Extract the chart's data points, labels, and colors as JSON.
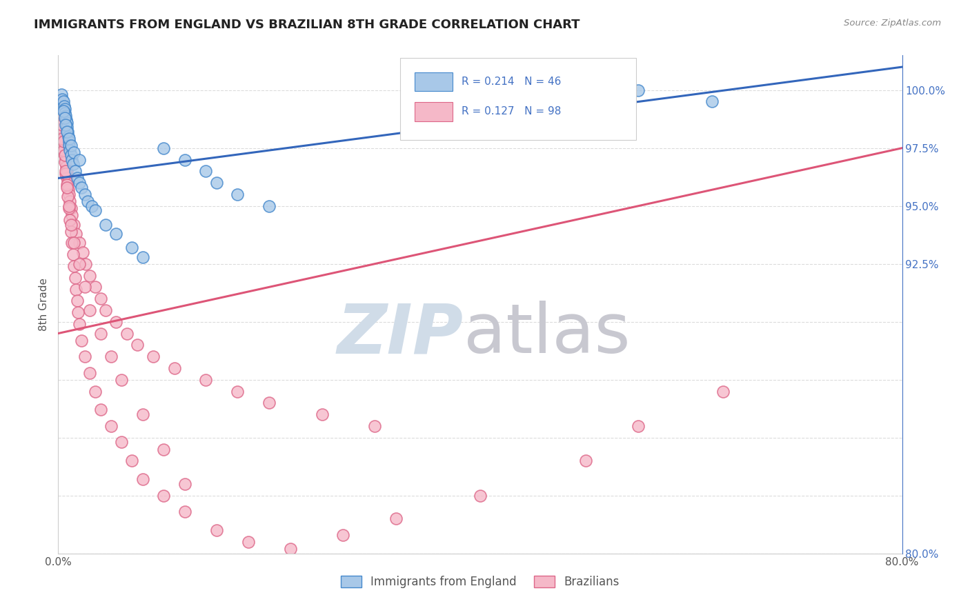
{
  "title": "IMMIGRANTS FROM ENGLAND VS BRAZILIAN 8TH GRADE CORRELATION CHART",
  "source_text": "Source: ZipAtlas.com",
  "ylabel": "8th Grade",
  "xlim": [
    0.0,
    80.0
  ],
  "ylim": [
    80.0,
    101.5
  ],
  "xtick_positions": [
    0.0,
    20.0,
    40.0,
    60.0,
    80.0
  ],
  "xticklabels": [
    "0.0%",
    "",
    "",
    "",
    "80.0%"
  ],
  "ytick_positions": [
    80.0,
    82.5,
    85.0,
    87.5,
    90.0,
    92.5,
    95.0,
    97.5,
    100.0
  ],
  "yticklabels_right": [
    "80.0%",
    "",
    "",
    "",
    "",
    "92.5%",
    "95.0%",
    "97.5%",
    "100.0%"
  ],
  "r_england": 0.214,
  "n_england": 46,
  "r_brazil": 0.127,
  "n_brazil": 98,
  "blue_line": [
    [
      0.0,
      96.2
    ],
    [
      80.0,
      101.0
    ]
  ],
  "pink_line": [
    [
      0.0,
      89.5
    ],
    [
      80.0,
      97.5
    ]
  ],
  "color_eng_face": "#a8c8e8",
  "color_eng_edge": "#4488cc",
  "color_bra_face": "#f5b8c8",
  "color_bra_edge": "#dd6688",
  "color_blue_line": "#3366bb",
  "color_pink_line": "#dd5577",
  "right_axis_color": "#4472c4",
  "watermark_zip_color": "#d0dce8",
  "watermark_atlas_color": "#c8c8d0",
  "title_color": "#222222",
  "source_color": "#888888",
  "ylabel_color": "#555555",
  "xtick_color": "#555555",
  "grid_color": "#d8d8d8",
  "background": "#ffffff",
  "eng_x": [
    0.3,
    0.4,
    0.5,
    0.55,
    0.6,
    0.65,
    0.7,
    0.75,
    0.8,
    0.85,
    0.9,
    0.95,
    1.0,
    1.05,
    1.1,
    1.2,
    1.3,
    1.4,
    1.6,
    1.8,
    2.0,
    2.2,
    2.5,
    2.8,
    3.2,
    3.5,
    4.5,
    5.5,
    7.0,
    8.0,
    10.0,
    12.0,
    14.0,
    15.0,
    17.0,
    20.0,
    55.0,
    62.0,
    0.5,
    0.6,
    0.7,
    0.8,
    1.0,
    1.2,
    1.5,
    2.0
  ],
  "eng_y": [
    99.8,
    99.6,
    99.5,
    99.3,
    99.2,
    99.0,
    98.9,
    98.7,
    98.6,
    98.4,
    98.2,
    98.0,
    97.8,
    97.6,
    97.4,
    97.2,
    97.0,
    96.8,
    96.5,
    96.2,
    96.0,
    95.8,
    95.5,
    95.2,
    95.0,
    94.8,
    94.2,
    93.8,
    93.2,
    92.8,
    97.5,
    97.0,
    96.5,
    96.0,
    95.5,
    95.0,
    100.0,
    99.5,
    99.1,
    98.8,
    98.5,
    98.2,
    97.9,
    97.6,
    97.3,
    97.0
  ],
  "bra_x": [
    0.15,
    0.2,
    0.25,
    0.3,
    0.35,
    0.4,
    0.45,
    0.5,
    0.55,
    0.6,
    0.65,
    0.7,
    0.75,
    0.8,
    0.85,
    0.9,
    0.95,
    1.0,
    1.1,
    1.2,
    1.3,
    1.5,
    1.7,
    2.0,
    2.3,
    2.6,
    3.0,
    3.5,
    4.0,
    4.5,
    5.5,
    6.5,
    7.5,
    9.0,
    11.0,
    14.0,
    17.0,
    20.0,
    25.0,
    30.0,
    0.2,
    0.3,
    0.4,
    0.5,
    0.6,
    0.7,
    0.8,
    0.9,
    1.0,
    1.1,
    1.2,
    1.3,
    1.4,
    1.5,
    1.6,
    1.7,
    1.8,
    1.9,
    2.0,
    2.2,
    2.5,
    3.0,
    3.5,
    4.0,
    5.0,
    6.0,
    7.0,
    8.0,
    10.0,
    12.0,
    15.0,
    18.0,
    22.0,
    27.0,
    32.0,
    40.0,
    50.0,
    55.0,
    63.0,
    0.3,
    0.4,
    0.5,
    0.6,
    0.7,
    0.8,
    1.0,
    1.2,
    1.5,
    2.0,
    2.5,
    3.0,
    4.0,
    5.0,
    6.0,
    8.0,
    10.0,
    12.0
  ],
  "bra_y": [
    99.5,
    99.3,
    99.1,
    98.9,
    98.7,
    98.5,
    98.3,
    98.0,
    97.8,
    97.5,
    97.2,
    97.0,
    96.7,
    96.5,
    96.2,
    96.0,
    95.7,
    95.5,
    95.2,
    94.9,
    94.6,
    94.2,
    93.8,
    93.4,
    93.0,
    92.5,
    92.0,
    91.5,
    91.0,
    90.5,
    90.0,
    89.5,
    89.0,
    88.5,
    88.0,
    87.5,
    87.0,
    86.5,
    86.0,
    85.5,
    98.8,
    98.3,
    97.9,
    97.4,
    96.9,
    96.4,
    95.9,
    95.4,
    94.9,
    94.4,
    93.9,
    93.4,
    92.9,
    92.4,
    91.9,
    91.4,
    90.9,
    90.4,
    89.9,
    89.2,
    88.5,
    87.8,
    87.0,
    86.2,
    85.5,
    84.8,
    84.0,
    83.2,
    82.5,
    81.8,
    81.0,
    80.5,
    80.2,
    80.8,
    81.5,
    82.5,
    84.0,
    85.5,
    87.0,
    99.0,
    98.5,
    97.8,
    97.2,
    96.5,
    95.8,
    95.0,
    94.2,
    93.4,
    92.5,
    91.5,
    90.5,
    89.5,
    88.5,
    87.5,
    86.0,
    84.5,
    83.0
  ]
}
